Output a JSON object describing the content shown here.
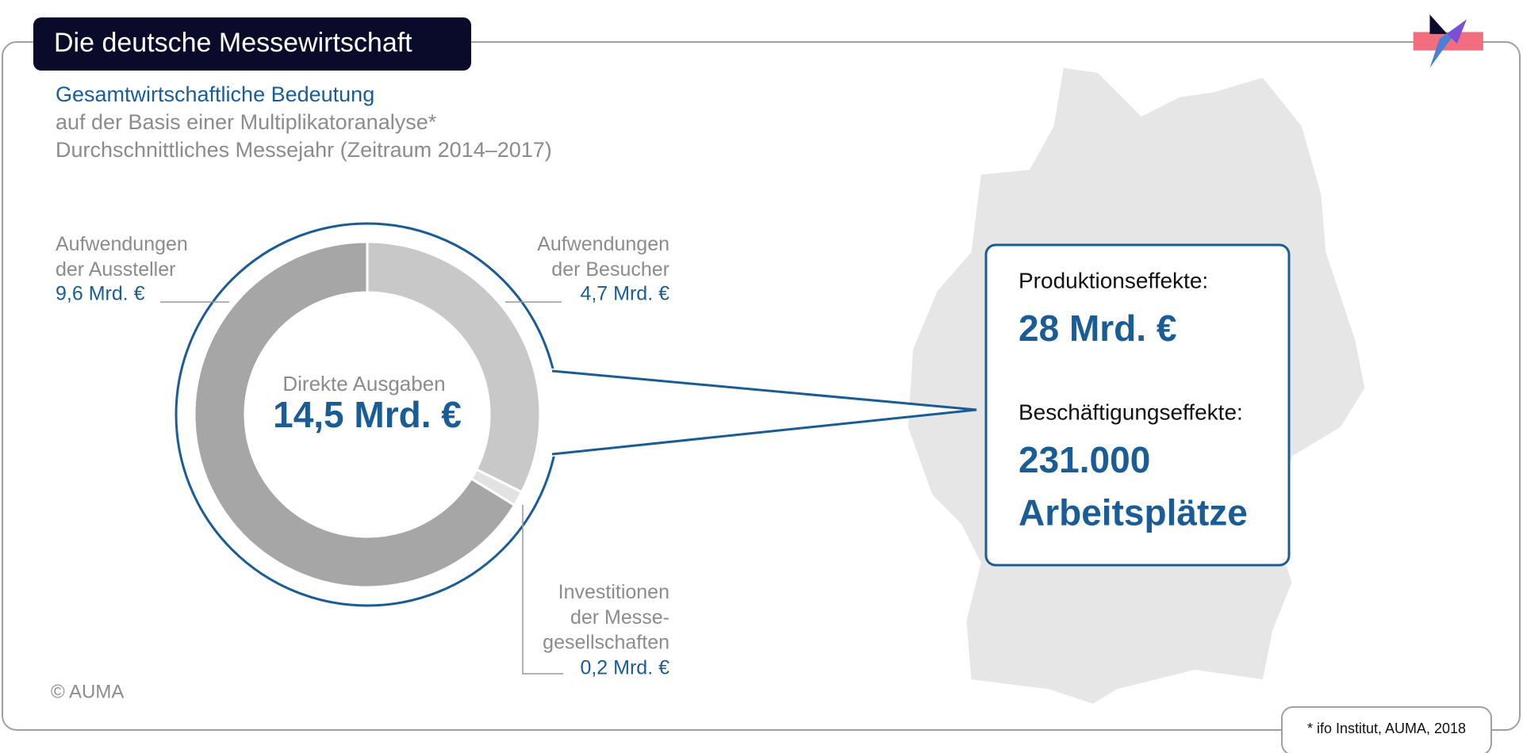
{
  "chart_data": {
    "type": "donut",
    "title": "Die deutsche Messewirtschaft",
    "subtitle": "Gesamtwirtschaftliche Bedeutung",
    "notes": [
      "auf der Basis einer Multiplikatoranalyse*",
      "Durchschnittliches Messejahr (Zeitraum 2014–2017)"
    ],
    "center_label": "Direkte Ausgaben",
    "center_value": "14,5 Mrd. €",
    "categories": [
      "Aufwendungen\nder Besucher",
      "Investitionen\nder Messe-\ngesellschaften",
      "Aufwendungen\nder Aussteller"
    ],
    "values": [
      4.7,
      0.2,
      9.6
    ],
    "value_labels": [
      "4,7 Mrd. €",
      "0,2 Mrd. €",
      "9,6 Mrd. €"
    ],
    "colors": [
      "#c8c8c8",
      "#e2e2e2",
      "#a6a6a6"
    ],
    "effects": [
      {
        "label": "Produktionseffekte:",
        "value": "28 Mrd. €"
      },
      {
        "label": "Beschäftigungseffekte:",
        "value": "231.000\nArbeitsplätze"
      }
    ],
    "copyright": "© AUMA",
    "source": "* ifo Institut, AUMA, 2018"
  }
}
